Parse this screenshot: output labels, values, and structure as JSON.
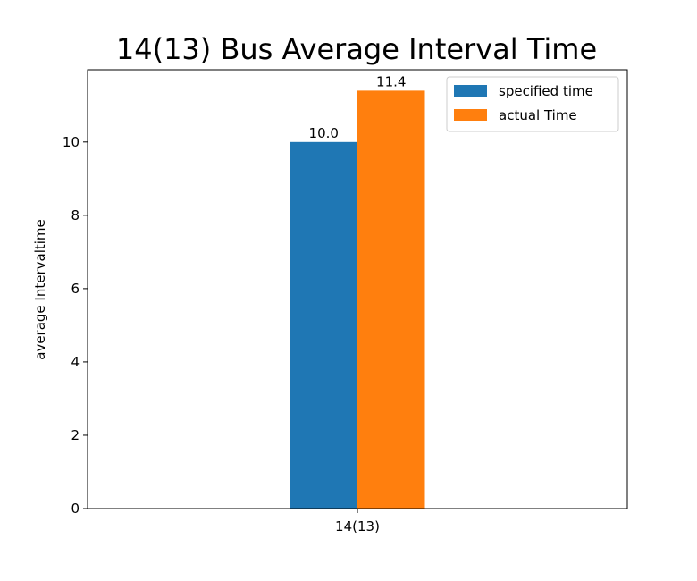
{
  "chart_data": {
    "type": "bar",
    "title": "14(13) Bus Average Interval Time",
    "xlabel": "",
    "ylabel": "average Intervaltime",
    "categories": [
      "14(13)"
    ],
    "series": [
      {
        "name": "specified time",
        "values": [
          10.0
        ],
        "color": "#1f77b4",
        "labels": [
          "10.0"
        ]
      },
      {
        "name": "actual Time",
        "values": [
          11.4
        ],
        "color": "#ff7f0e",
        "labels": [
          "11.4"
        ]
      }
    ],
    "ylim": [
      0,
      11.97
    ],
    "yticks": [
      0,
      2,
      4,
      6,
      8,
      10
    ],
    "ytick_labels": [
      "0",
      "2",
      "4",
      "6",
      "8",
      "10"
    ],
    "grid": false,
    "legend_position": "top-right"
  }
}
